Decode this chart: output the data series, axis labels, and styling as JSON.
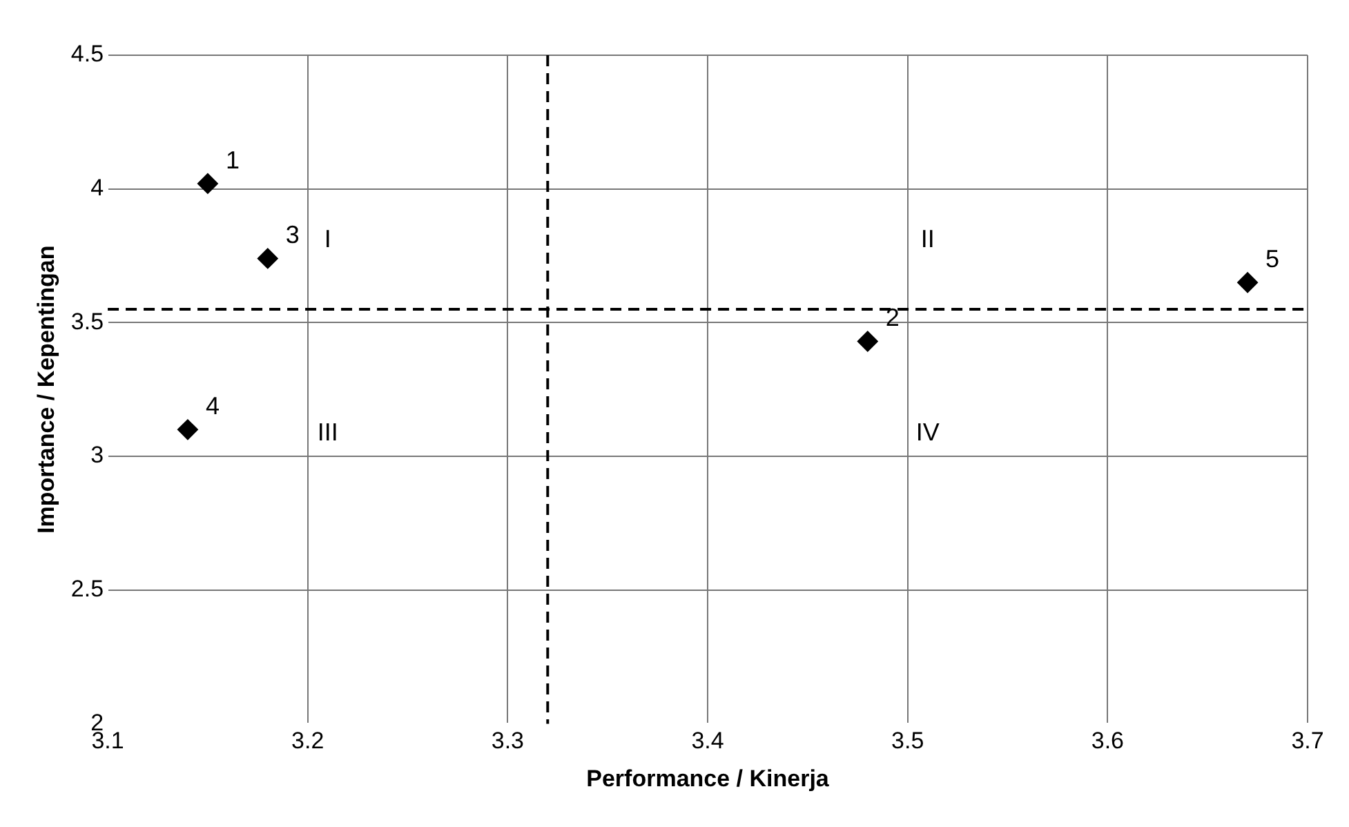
{
  "chart_data": {
    "type": "scatter",
    "xlabel": "Performance / Kinerja",
    "ylabel": "Importance / Kepentingan",
    "x": [
      3.15,
      3.48,
      3.18,
      3.14,
      3.67
    ],
    "values": [
      4.02,
      3.43,
      3.74,
      3.1,
      3.65
    ],
    "color": "#000000",
    "marker": "diamond",
    "grid": true,
    "legend": false,
    "xlim": [
      3.1,
      3.7
    ],
    "xticks": [
      3.1,
      3.2,
      3.3,
      3.4,
      3.5,
      3.6,
      3.7
    ],
    "ylim": [
      2,
      4.5
    ],
    "yticks": [
      2,
      2.5,
      3,
      3.5,
      4,
      4.5
    ],
    "ref_lines": [
      {
        "axis": "x",
        "value": 3.32,
        "line_style": "dashed",
        "color": "#000000"
      },
      {
        "axis": "y",
        "value": 3.55,
        "line_style": "dashed",
        "color": "#000000"
      }
    ],
    "annotations": [
      {
        "text": "1",
        "x": 3.15,
        "y": 4.02
      },
      {
        "text": "2",
        "x": 3.48,
        "y": 3.43
      },
      {
        "text": "3",
        "x": 3.18,
        "y": 3.74
      },
      {
        "text": "4",
        "x": 3.14,
        "y": 3.1
      },
      {
        "text": "5",
        "x": 3.67,
        "y": 3.65
      },
      "I",
      "II",
      "III",
      "IV"
    ]
  }
}
